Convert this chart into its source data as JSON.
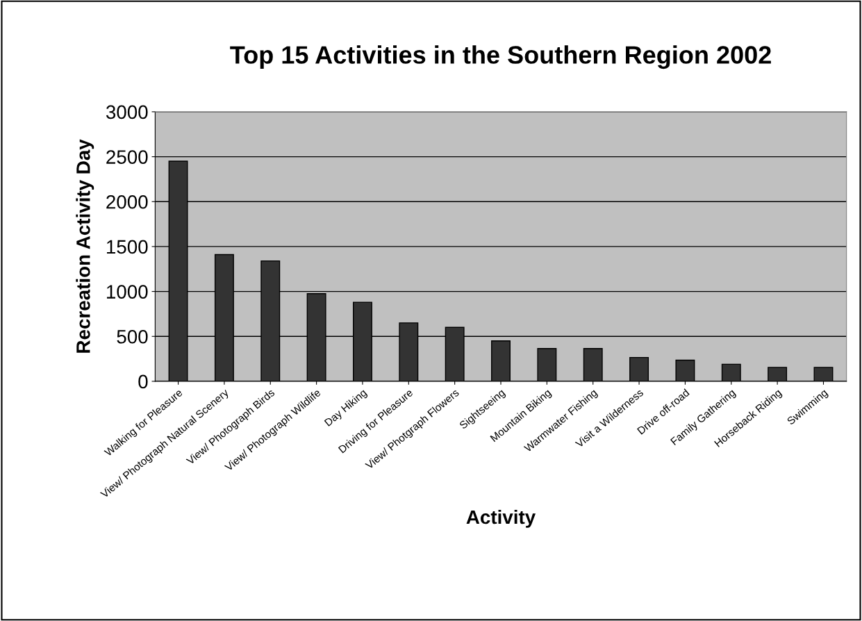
{
  "chart_data": {
    "type": "bar",
    "title": "Top 15 Activities in the Southern Region 2002",
    "xlabel": "Activity",
    "ylabel": "Recreation Activity Day",
    "categories": [
      "Walking for Pleasure",
      "View/ Photograph Natural Scenery",
      "View/ Photograph Birds",
      "View/ Photograph Wildlife",
      "Day Hiking",
      "Driving for Pleasure",
      "View/ Photgraph Flowers",
      "Sightseeing",
      "Mountain Biking",
      "Warmwater Fishing",
      "Visit a Wilderness",
      "Drive off-road",
      "Family Gathering",
      "Horseback Riding",
      "Swimming"
    ],
    "values": [
      2450,
      1410,
      1340,
      975,
      880,
      650,
      600,
      450,
      365,
      365,
      265,
      235,
      190,
      155,
      155
    ],
    "color": "#333333",
    "ylim": [
      0,
      3000
    ],
    "yticks": [
      0,
      500,
      1000,
      1500,
      2000,
      2500,
      3000
    ],
    "grid": "y",
    "legend": false
  }
}
